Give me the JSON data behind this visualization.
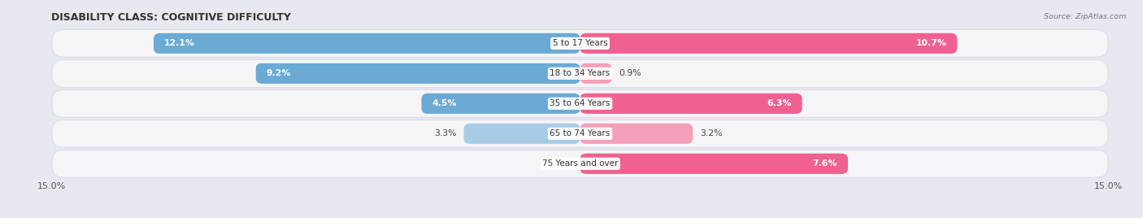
{
  "title": "DISABILITY CLASS: COGNITIVE DIFFICULTY",
  "source": "Source: ZipAtlas.com",
  "categories": [
    "5 to 17 Years",
    "18 to 34 Years",
    "35 to 64 Years",
    "65 to 74 Years",
    "75 Years and over"
  ],
  "male_values": [
    12.1,
    9.2,
    4.5,
    3.3,
    0.0
  ],
  "female_values": [
    10.7,
    0.9,
    6.3,
    3.2,
    7.6
  ],
  "male_color_dark": "#6aaad4",
  "male_color_light": "#a8cce8",
  "female_color_dark": "#f06090",
  "female_color_light": "#f4a0b8",
  "max_val": 15.0,
  "bar_height": 0.68,
  "row_bg_color": "#f5f5f8",
  "row_border_color": "#dcdce8",
  "page_bg_color": "#e8e8f0",
  "title_fontsize": 9,
  "label_fontsize": 7.8,
  "tick_fontsize": 8,
  "category_fontsize": 7.5,
  "source_fontsize": 6.8
}
